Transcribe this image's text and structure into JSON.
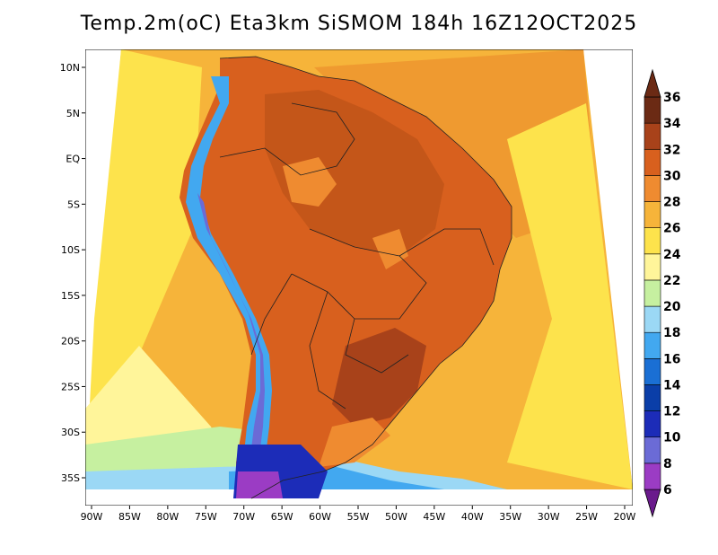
{
  "title": "Temp.2m(oC) Eta3km SiSMOM 184h 16Z12OCT2025",
  "map": {
    "lat_labels": [
      "10N",
      "5N",
      "EQ",
      "5S",
      "10S",
      "15S",
      "20S",
      "25S",
      "30S",
      "35S"
    ],
    "lon_labels": [
      "90W",
      "85W",
      "80W",
      "75W",
      "70W",
      "65W",
      "60W",
      "55W",
      "50W",
      "45W",
      "40W",
      "35W",
      "30W",
      "25W",
      "20W"
    ],
    "lat_range": [
      -38,
      12
    ],
    "lon_range": [
      -91,
      -19
    ],
    "variable": "2m temperature",
    "units": "oC"
  },
  "colorbar": {
    "levels": [
      "6",
      "8",
      "10",
      "12",
      "14",
      "16",
      "18",
      "20",
      "22",
      "24",
      "26",
      "28",
      "30",
      "32",
      "34",
      "36"
    ],
    "colors": [
      "#6a1a8c",
      "#9b3cc4",
      "#6b6bd6",
      "#1c2cb8",
      "#0a3ea8",
      "#1a6fd4",
      "#42a8f0",
      "#9bd8f5",
      "#c6f0a0",
      "#fff59a",
      "#fde34c",
      "#f6b43a",
      "#ef8b30",
      "#d8601e",
      "#a8421a",
      "#6b2a14"
    ]
  }
}
